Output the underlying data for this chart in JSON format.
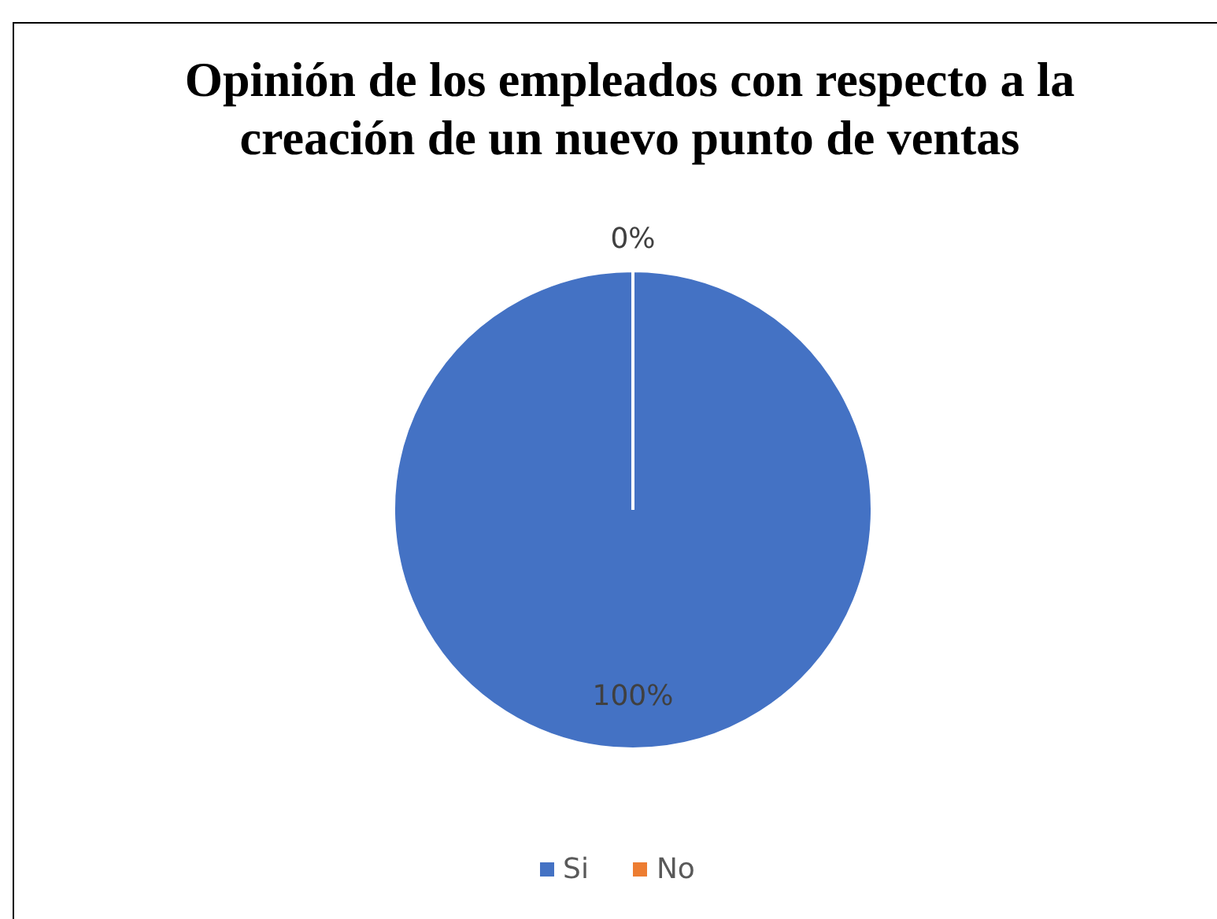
{
  "chart_data": {
    "type": "pie",
    "title": "Opinión de los empleados con respecto a la creación de un nuevo punto de ventas",
    "categories": [
      "Si",
      "No"
    ],
    "values": [
      100,
      0
    ],
    "colors": [
      "#4472c4",
      "#ed7d31"
    ],
    "value_labels": [
      "100%",
      "0%"
    ],
    "legend": "bottom"
  }
}
